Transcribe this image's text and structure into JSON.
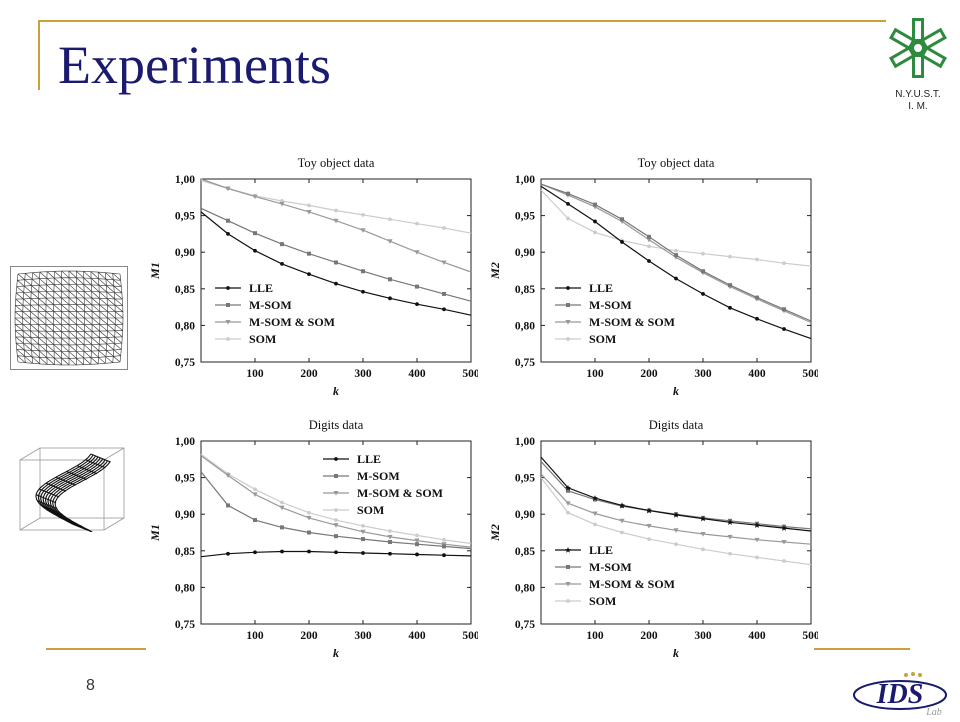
{
  "slide": {
    "title": "Experiments",
    "page_number": "8",
    "logo_lines": [
      "N.Y.U.S.T.",
      "I. M."
    ],
    "lab_logo_text": "IDS",
    "lab_logo_sub": "Lab",
    "accent_color": "#c9a13b",
    "title_color": "#1a1a6e"
  },
  "chart_data": [
    {
      "type": "line",
      "title": "Toy object data",
      "xlabel": "k",
      "ylabel": "M1",
      "xlim": [
        0,
        500
      ],
      "ylim": [
        0.75,
        1.0
      ],
      "xticks": [
        100,
        200,
        300,
        400,
        500
      ],
      "yticks": [
        "0.75",
        "0.80",
        "0.85",
        "0.90",
        "0.95",
        "1.00"
      ],
      "legend": "bottom-left",
      "x": [
        0,
        50,
        100,
        150,
        200,
        250,
        300,
        350,
        400,
        450,
        500
      ],
      "series": [
        {
          "name": "LLE",
          "marker": "dot",
          "color": "#111111",
          "values": [
            0.955,
            0.925,
            0.902,
            0.884,
            0.87,
            0.857,
            0.846,
            0.837,
            0.829,
            0.822,
            0.814
          ]
        },
        {
          "name": "M-SOM",
          "marker": "square",
          "color": "#777777",
          "values": [
            0.96,
            0.943,
            0.926,
            0.911,
            0.898,
            0.886,
            0.874,
            0.863,
            0.853,
            0.843,
            0.833
          ]
        },
        {
          "name": "M-SOM & SOM",
          "marker": "triangle",
          "color": "#999999",
          "values": [
            1.0,
            0.987,
            0.976,
            0.966,
            0.955,
            0.943,
            0.93,
            0.915,
            0.9,
            0.886,
            0.873
          ]
        },
        {
          "name": "SOM",
          "marker": "dot",
          "color": "#cccccc",
          "values": [
            0.998,
            0.987,
            0.977,
            0.97,
            0.964,
            0.957,
            0.951,
            0.945,
            0.939,
            0.933,
            0.926
          ]
        }
      ]
    },
    {
      "type": "line",
      "title": "Toy object data",
      "xlabel": "k",
      "ylabel": "M2",
      "xlim": [
        0,
        500
      ],
      "ylim": [
        0.75,
        1.0
      ],
      "xticks": [
        100,
        200,
        300,
        400,
        500
      ],
      "yticks": [
        "0.75",
        "0.80",
        "0.85",
        "0.90",
        "0.95",
        "1.00"
      ],
      "legend": "bottom-left",
      "x": [
        0,
        50,
        100,
        150,
        200,
        250,
        300,
        350,
        400,
        450,
        500
      ],
      "series": [
        {
          "name": "LLE",
          "marker": "dot",
          "color": "#111111",
          "values": [
            0.99,
            0.966,
            0.942,
            0.914,
            0.888,
            0.864,
            0.843,
            0.824,
            0.809,
            0.795,
            0.782
          ]
        },
        {
          "name": "M-SOM",
          "marker": "square",
          "color": "#777777",
          "values": [
            0.993,
            0.98,
            0.965,
            0.945,
            0.921,
            0.896,
            0.874,
            0.855,
            0.838,
            0.822,
            0.806
          ]
        },
        {
          "name": "M-SOM & SOM",
          "marker": "triangle",
          "color": "#999999",
          "values": [
            0.993,
            0.978,
            0.962,
            0.942,
            0.917,
            0.893,
            0.872,
            0.853,
            0.836,
            0.82,
            0.804
          ]
        },
        {
          "name": "SOM",
          "marker": "dot",
          "color": "#cccccc",
          "values": [
            0.985,
            0.946,
            0.927,
            0.916,
            0.908,
            0.902,
            0.898,
            0.894,
            0.89,
            0.885,
            0.881
          ]
        }
      ]
    },
    {
      "type": "line",
      "title": "Digits data",
      "xlabel": "k",
      "ylabel": "M1",
      "xlim": [
        0,
        500
      ],
      "ylim": [
        0.75,
        1.0
      ],
      "xticks": [
        100,
        200,
        300,
        400,
        500
      ],
      "yticks": [
        "0.75",
        "0.80",
        "0.85",
        "0.90",
        "0.95",
        "1.00"
      ],
      "legend": "top-right",
      "x": [
        0,
        50,
        100,
        150,
        200,
        250,
        300,
        350,
        400,
        450,
        500
      ],
      "series": [
        {
          "name": "LLE",
          "marker": "dot",
          "color": "#111111",
          "values": [
            0.842,
            0.846,
            0.848,
            0.849,
            0.849,
            0.848,
            0.847,
            0.846,
            0.845,
            0.844,
            0.843
          ]
        },
        {
          "name": "M-SOM",
          "marker": "square",
          "color": "#777777",
          "values": [
            0.958,
            0.912,
            0.892,
            0.882,
            0.875,
            0.87,
            0.866,
            0.862,
            0.859,
            0.856,
            0.853
          ]
        },
        {
          "name": "M-SOM & SOM",
          "marker": "triangle",
          "color": "#999999",
          "values": [
            0.98,
            0.953,
            0.927,
            0.909,
            0.895,
            0.885,
            0.876,
            0.869,
            0.864,
            0.859,
            0.855
          ]
        },
        {
          "name": "SOM",
          "marker": "dot",
          "color": "#cccccc",
          "values": [
            0.982,
            0.955,
            0.934,
            0.916,
            0.902,
            0.892,
            0.884,
            0.877,
            0.871,
            0.865,
            0.86
          ]
        }
      ]
    },
    {
      "type": "line",
      "title": "Digits data",
      "xlabel": "k",
      "ylabel": "M2",
      "xlim": [
        0,
        500
      ],
      "ylim": [
        0.75,
        1.0
      ],
      "xticks": [
        100,
        200,
        300,
        400,
        500
      ],
      "yticks": [
        "0.75",
        "0.80",
        "0.85",
        "0.90",
        "0.95",
        "1.00"
      ],
      "legend": "bottom-left",
      "x": [
        0,
        50,
        100,
        150,
        200,
        250,
        300,
        350,
        400,
        450,
        500
      ],
      "series": [
        {
          "name": "LLE",
          "marker": "star",
          "color": "#111111",
          "values": [
            0.978,
            0.936,
            0.922,
            0.912,
            0.905,
            0.899,
            0.894,
            0.889,
            0.885,
            0.881,
            0.877
          ]
        },
        {
          "name": "M-SOM",
          "marker": "square",
          "color": "#777777",
          "values": [
            0.972,
            0.932,
            0.92,
            0.911,
            0.905,
            0.9,
            0.895,
            0.891,
            0.887,
            0.883,
            0.88
          ]
        },
        {
          "name": "M-SOM & SOM",
          "marker": "triangle",
          "color": "#999999",
          "values": [
            0.955,
            0.915,
            0.901,
            0.891,
            0.884,
            0.878,
            0.873,
            0.869,
            0.865,
            0.862,
            0.859
          ]
        },
        {
          "name": "SOM",
          "marker": "dot",
          "color": "#cccccc",
          "values": [
            0.95,
            0.902,
            0.886,
            0.875,
            0.866,
            0.859,
            0.852,
            0.846,
            0.841,
            0.836,
            0.831
          ]
        }
      ]
    }
  ]
}
